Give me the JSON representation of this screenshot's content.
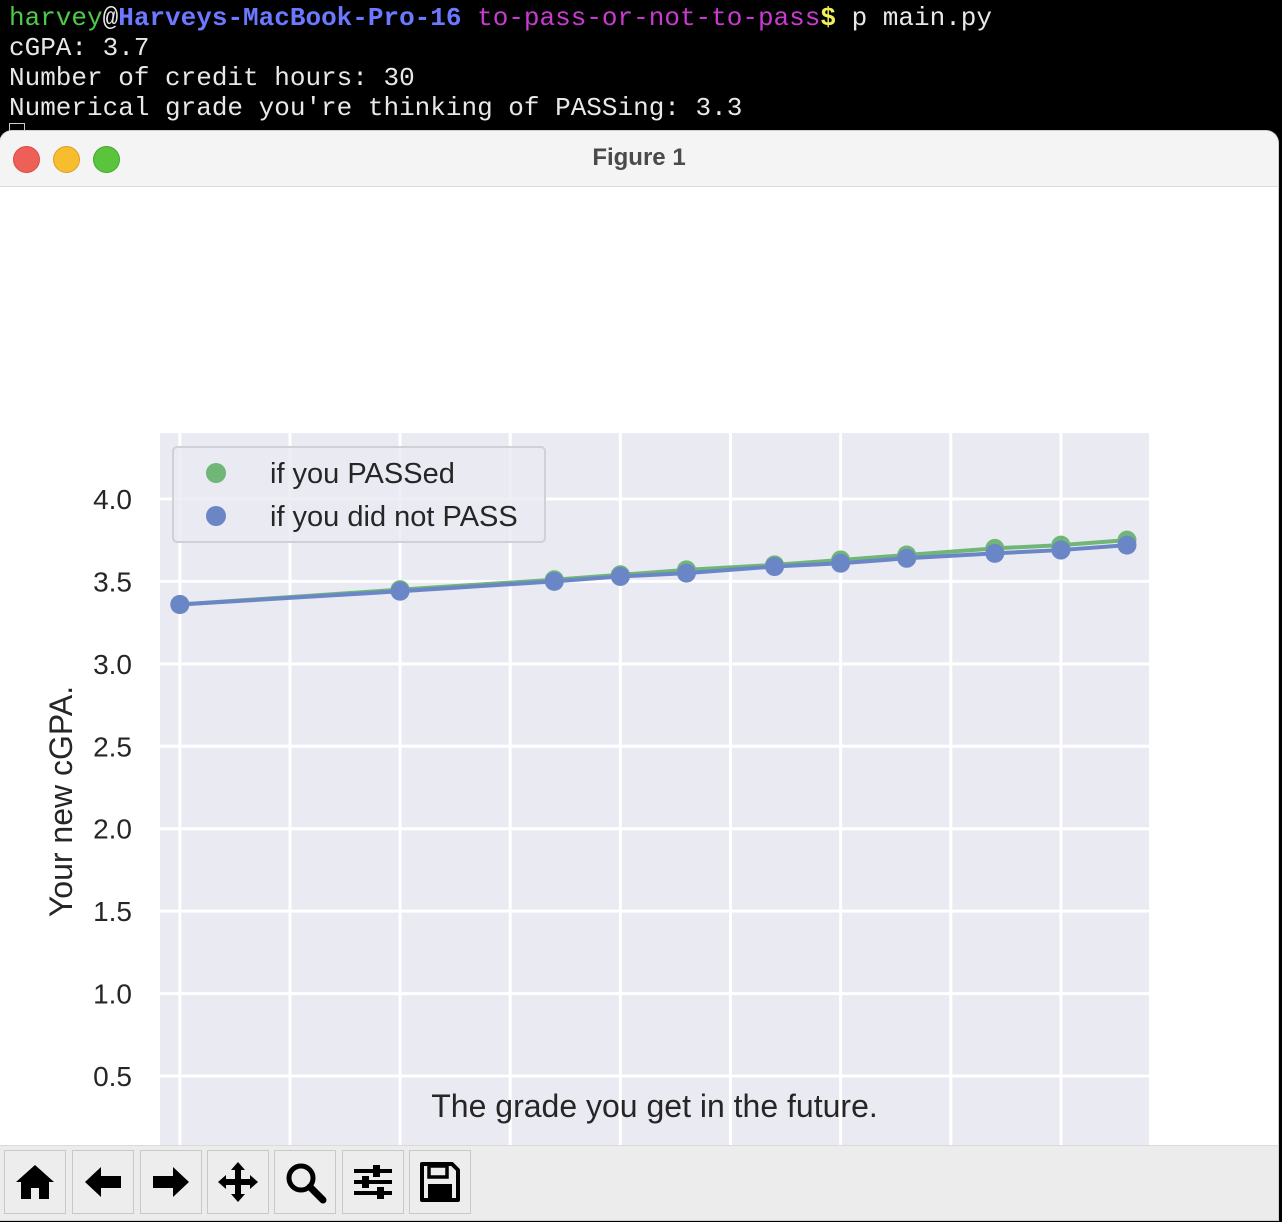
{
  "terminal": {
    "user": "harvey",
    "at": "@",
    "host": "Harveys-MacBook-Pro-16",
    "directory": "to-pass-or-not-to-pass",
    "prompt_symbol": "$",
    "command": " p main.py",
    "lines": [
      "cGPA: 3.7",
      "Number of credit hours: 30",
      "Numerical grade you're thinking of PASSing: 3.3"
    ]
  },
  "window": {
    "title": "Figure 1"
  },
  "toolbar": {
    "buttons": [
      "home-icon",
      "back-arrow-icon",
      "forward-arrow-icon",
      "pan-move-icon",
      "zoom-magnifier-icon",
      "configure-subplots-icon",
      "save-floppy-icon"
    ]
  },
  "colors": {
    "plot_background": "#eaeaf2",
    "passed_series": "#6fb677",
    "not_passed_series": "#6a86c6"
  },
  "chart_data": {
    "type": "scatter",
    "xlabel": "The grade you get in the future.",
    "ylabel": "Your new cGPA.",
    "xlim": [
      -0.09,
      4.4
    ],
    "ylim": [
      -0.07,
      4.4
    ],
    "xticks": [
      "0.0",
      "0.5",
      "1.0",
      "1.5",
      "2.0",
      "2.5",
      "3.0",
      "3.5",
      "4.0"
    ],
    "yticks": [
      "0.0",
      "0.5",
      "1.0",
      "1.5",
      "2.0",
      "2.5",
      "3.0",
      "3.5",
      "4.0"
    ],
    "grid": true,
    "legend_position": "top-left",
    "x": [
      0.0,
      1.0,
      1.7,
      2.0,
      2.3,
      2.7,
      3.0,
      3.3,
      3.7,
      4.0,
      4.3
    ],
    "series": [
      {
        "name": "if you PASSed",
        "values": [
          3.36,
          3.45,
          3.51,
          3.54,
          3.57,
          3.6,
          3.63,
          3.66,
          3.7,
          3.72,
          3.75
        ]
      },
      {
        "name": "if you did not PASS",
        "values": [
          3.36,
          3.44,
          3.5,
          3.53,
          3.55,
          3.59,
          3.61,
          3.64,
          3.67,
          3.69,
          3.72
        ]
      }
    ]
  }
}
